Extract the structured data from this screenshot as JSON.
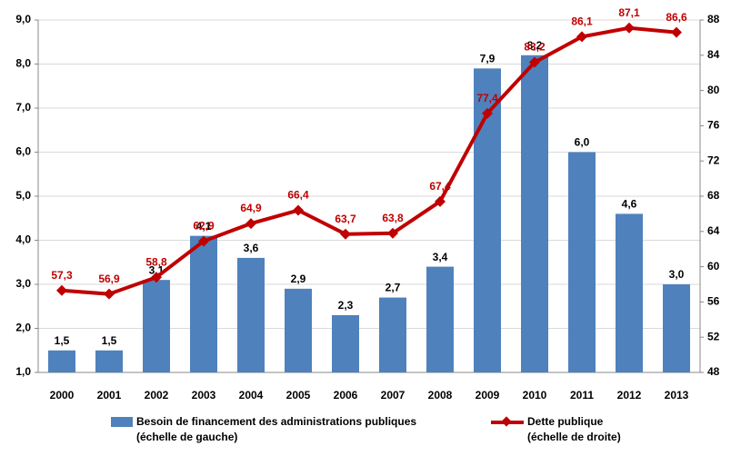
{
  "chart_data": {
    "type": "bar",
    "categories": [
      "2000",
      "2001",
      "2002",
      "2003",
      "2004",
      "2005",
      "2006",
      "2007",
      "2008",
      "2009",
      "2010",
      "2011",
      "2012",
      "2013"
    ],
    "series": [
      {
        "name": "Besoin de financement des administrations publiques\n(échelle de gauche)",
        "type": "bar",
        "color": "#4f81bd",
        "values": [
          1.5,
          1.5,
          3.1,
          4.1,
          3.6,
          2.9,
          2.3,
          2.7,
          3.4,
          7.9,
          8.2,
          6.0,
          4.6,
          3.0
        ],
        "value_labels": [
          "1,5",
          "1,5",
          "3,1",
          "4,1",
          "3,6",
          "2,9",
          "2,3",
          "2,7",
          "3,4",
          "7,9",
          "8,2",
          "6,0",
          "4,6",
          "3,0"
        ]
      },
      {
        "name": "Dette publique\n(échelle de droite)",
        "type": "line",
        "axis": "y2",
        "color": "#c00000",
        "values": [
          57.3,
          56.9,
          58.8,
          62.9,
          64.9,
          66.4,
          63.7,
          63.8,
          67.4,
          77.4,
          83.2,
          86.1,
          87.1,
          86.6
        ],
        "value_labels": [
          "57,3",
          "56,9",
          "58,8",
          "62,9",
          "64,9",
          "66,4",
          "63,7",
          "63,8",
          "67,4",
          "77,4",
          "83,2",
          "86,1",
          "87,1",
          "86,6"
        ]
      }
    ],
    "ylim": [
      1.0,
      9.0
    ],
    "yticks": [
      {
        "value": 1.0,
        "label": "1,0"
      },
      {
        "value": 2.0,
        "label": "2,0"
      },
      {
        "value": 3.0,
        "label": "3,0"
      },
      {
        "value": 4.0,
        "label": "4,0"
      },
      {
        "value": 5.0,
        "label": "5,0"
      },
      {
        "value": 6.0,
        "label": "6,0"
      },
      {
        "value": 7.0,
        "label": "7,0"
      },
      {
        "value": 8.0,
        "label": "8,0"
      },
      {
        "value": 9.0,
        "label": "9,0"
      }
    ],
    "y2lim": [
      48,
      88
    ],
    "y2ticks": [
      48,
      52,
      56,
      60,
      64,
      68,
      72,
      76,
      80,
      84,
      88
    ],
    "grid": true
  }
}
